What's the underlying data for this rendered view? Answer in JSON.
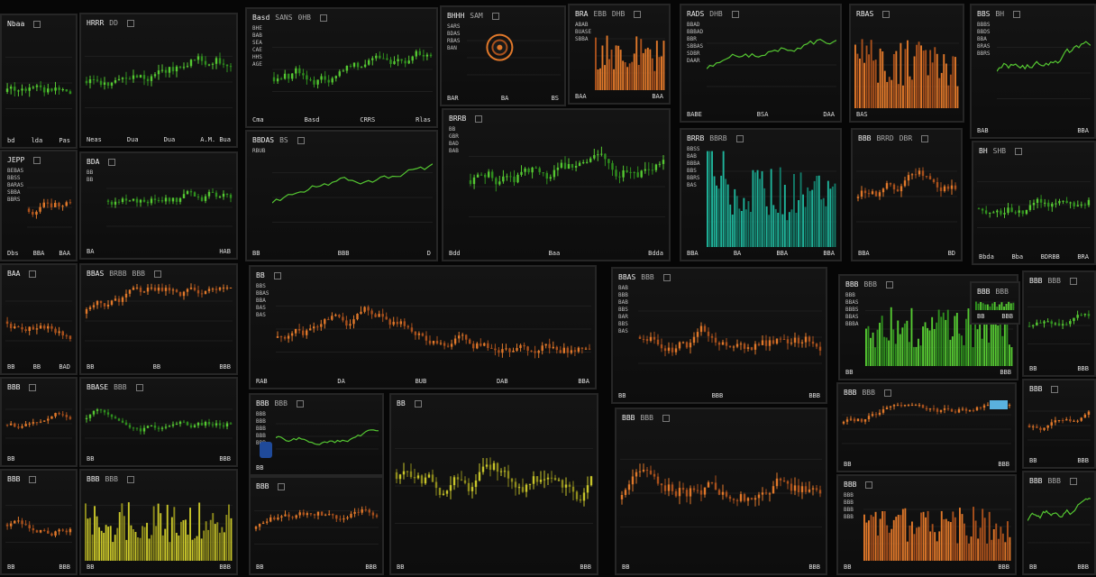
{
  "theme": {
    "accent_green": "#55c832",
    "accent_orange": "#e0782a",
    "accent_yellow": "#c8c52a",
    "accent_teal": "#1fb39a",
    "accent_blue": "#2c5d86"
  },
  "panels": [
    {
      "key": "p1",
      "chart_type": "candlestick",
      "color_scheme": "green",
      "header": [
        "Nbaa"
      ],
      "labels": [],
      "footer": [
        "bd",
        "lda",
        "Pas"
      ]
    },
    {
      "key": "p2",
      "chart_type": "candlestick",
      "color_scheme": "green",
      "header": [
        "HRRR",
        "DD"
      ],
      "labels": [],
      "footer": [
        "Neas",
        "Dua",
        "Dua",
        "A.M. Bua"
      ]
    },
    {
      "key": "p3",
      "chart_type": "candlestick",
      "color_scheme": "green",
      "header": [
        "Basd",
        "SANS",
        "0HB"
      ],
      "labels": [
        "BHE",
        "BAB",
        "SEA",
        "CAE",
        "HHS",
        "AGE"
      ],
      "footer": [
        "Cma",
        "Basd",
        "CRRS",
        "Rlas"
      ]
    },
    {
      "key": "p4",
      "chart_type": "orbit",
      "color_scheme": "orange",
      "header": [
        "BHHH",
        "SAM"
      ],
      "labels": [
        "SARS",
        "BDAS",
        "RBAS",
        "BAN"
      ],
      "footer": [
        "BAR",
        "BA",
        "BS"
      ]
    },
    {
      "key": "p5",
      "chart_type": "histogram",
      "color_scheme": "orange",
      "header": [
        "BRA",
        "EBB",
        "DHB"
      ],
      "labels": [
        "ABAB",
        "BUASE",
        "SBBA"
      ],
      "footer": [
        "BAA",
        "BAA"
      ]
    },
    {
      "key": "p6",
      "chart_type": "line",
      "color_scheme": "green",
      "header": [
        "RADS",
        "DHB"
      ],
      "labels": [
        "BBAD",
        "BBBAD",
        "BBR",
        "SBBAS",
        "SDBR",
        "DAAR"
      ],
      "footer": [
        "BABE",
        "BSA",
        "DAA"
      ]
    },
    {
      "key": "p7",
      "chart_type": "histogram",
      "color_scheme": "orange",
      "header": [
        "RBAS"
      ],
      "labels": [],
      "footer": [
        "BAS"
      ]
    },
    {
      "key": "p8",
      "chart_type": "candlestick",
      "color_scheme": "orange",
      "header": [
        "JEPP"
      ],
      "labels": [
        "BEBAS",
        "BBSS",
        "BARAS",
        "SBBA",
        "BBRS"
      ],
      "footer": [
        "Dbs",
        "BBA",
        "BAA"
      ]
    },
    {
      "key": "p9",
      "chart_type": "candlestick",
      "color_scheme": "green",
      "header": [
        "BDA"
      ],
      "labels": [
        "BB",
        "BB"
      ],
      "footer": [
        "BA",
        "HAB"
      ]
    },
    {
      "key": "p10",
      "chart_type": "line",
      "color_scheme": "green",
      "header": [
        "BBDAS",
        "BS"
      ],
      "labels": [
        "RBUB"
      ],
      "footer": [
        "BB",
        "BBB",
        "D"
      ]
    },
    {
      "key": "p11",
      "chart_type": "candlestick",
      "color_scheme": "green",
      "header": [
        "BRRB"
      ],
      "labels": [
        "BB",
        "GBR",
        "BAD",
        "BAB"
      ],
      "footer": [
        "Bdd",
        "Baa",
        "Bdda"
      ]
    },
    {
      "key": "p12",
      "chart_type": "candlestick",
      "color_scheme": "green",
      "header": [
        "BH",
        "SHB"
      ],
      "labels": [],
      "footer": [
        "Bbda",
        "Bba",
        "BDRBB",
        "BRA"
      ]
    },
    {
      "key": "p13",
      "chart_type": "histogram",
      "color_scheme": "teal",
      "header": [
        "BRRB",
        "BBRB"
      ],
      "labels": [
        "BBSS",
        "BAB",
        "BBBA",
        "BBS",
        "BBRS",
        "BAS"
      ],
      "footer": [
        "BBA",
        "BA",
        "BBA",
        "BBA"
      ]
    },
    {
      "key": "p14",
      "chart_type": "candlestick",
      "color_scheme": "orange",
      "header": [
        "BBB",
        "BRRD",
        "DBR"
      ],
      "labels": [],
      "footer": [
        "BBA",
        "BD"
      ]
    },
    {
      "key": "p15",
      "chart_type": "line",
      "color_scheme": "green",
      "header": [
        "BBS",
        "BH"
      ],
      "labels": [
        "BBBS",
        "BBDS",
        "BBA",
        "BRAS",
        "BBRS"
      ],
      "footer": [
        "BAB",
        "BBA"
      ]
    },
    {
      "key": "p16",
      "chart_type": "candlestick",
      "color_scheme": "orange",
      "header": [
        "BAA"
      ],
      "labels": [],
      "footer": [
        "BB",
        "BB",
        "BAD"
      ]
    },
    {
      "key": "p17",
      "chart_type": "candlestick",
      "color_scheme": "orange",
      "header": [
        "BBAS",
        "BRBB",
        "BBB"
      ],
      "labels": [],
      "footer": [
        "BB",
        "BB",
        "BBB"
      ]
    },
    {
      "key": "p18",
      "chart_type": "candlestick",
      "color_scheme": "orange",
      "header": [
        "BB"
      ],
      "labels": [
        "BBS",
        "BBAS",
        "BBA",
        "BAS",
        "BAS"
      ],
      "footer": [
        "RAB",
        "DA",
        "BUB",
        "DAB",
        "BBA"
      ]
    },
    {
      "key": "p19",
      "chart_type": "candlestick",
      "color_scheme": "orange",
      "header": [
        "BBAS",
        "BBB"
      ],
      "labels": [
        "BAB",
        "BBB",
        "BAB",
        "BBS",
        "BAR",
        "BBS",
        "BAS"
      ],
      "footer": [
        "BB",
        "BBB",
        "BBB"
      ]
    },
    {
      "key": "p20",
      "chart_type": "histogram",
      "color_scheme": "green",
      "header": [
        "BBB",
        "BBB"
      ],
      "labels": [
        "BBB",
        "BBAS",
        "BBBS",
        "BBAS",
        "BBBA"
      ],
      "footer": [
        "BB",
        "BBB"
      ]
    },
    {
      "key": "p21",
      "chart_type": "candlestick",
      "color_scheme": "yellow",
      "header": [
        "BBS"
      ],
      "labels": [],
      "footer": [
        "BB",
        "BBB"
      ]
    },
    {
      "key": "p22",
      "chart_type": "candlestick",
      "color_scheme": "orange",
      "header": [
        "BBB"
      ],
      "labels": [],
      "footer": [
        "BB"
      ]
    },
    {
      "key": "p23",
      "chart_type": "candlestick",
      "color_scheme": "green",
      "header": [
        "BBASE",
        "BBB"
      ],
      "labels": [],
      "footer": [
        "BB",
        "BBB"
      ]
    },
    {
      "key": "p24",
      "chart_type": "line",
      "color_scheme": "green",
      "header": [
        "BBB",
        "BBB"
      ],
      "labels": [
        "BBB",
        "BBB",
        "BBB",
        "BBB",
        "BBB"
      ],
      "footer": [
        "BB"
      ]
    },
    {
      "key": "p25",
      "chart_type": "candlestick",
      "color_scheme": "yellow",
      "header": [
        "BB"
      ],
      "labels": [],
      "footer": [
        "BB",
        "BBB"
      ]
    },
    {
      "key": "p26",
      "chart_type": "candlestick",
      "color_scheme": "orange",
      "header": [
        "BBB",
        "BBB"
      ],
      "labels": [],
      "footer": [
        "BB",
        "BBB"
      ]
    },
    {
      "key": "p27",
      "chart_type": "histogram",
      "color_scheme": "orange",
      "header": [
        "BBB"
      ],
      "labels": [
        "BBB",
        "BBB",
        "BBB",
        "BBB"
      ],
      "footer": [
        "BB",
        "BBB"
      ]
    },
    {
      "key": "p28",
      "chart_type": "candlestick",
      "color_scheme": "orange",
      "header": [
        "BBB"
      ],
      "labels": [],
      "footer": [
        "BB",
        "BBB"
      ]
    },
    {
      "key": "p29",
      "chart_type": "histogram",
      "color_scheme": "yellow",
      "header": [
        "BBB",
        "BBB"
      ],
      "labels": [],
      "footer": [
        "BB",
        "BBB"
      ]
    },
    {
      "key": "p30",
      "chart_type": "candlestick",
      "color_scheme": "orange",
      "header": [
        "BBB"
      ],
      "labels": [],
      "footer": [
        "BB",
        "BBB"
      ]
    },
    {
      "key": "p31",
      "chart_type": "candlestick",
      "color_scheme": "orange",
      "header": [
        "BBB",
        "BBB"
      ],
      "labels": [],
      "footer": [
        "BB",
        "BBB"
      ]
    },
    {
      "key": "p32",
      "chart_type": "candlestick",
      "color_scheme": "green",
      "header": [
        "BBB",
        "BBB"
      ],
      "labels": [],
      "footer": [
        "BB",
        "BBB"
      ]
    },
    {
      "key": "p33",
      "chart_type": "histogram",
      "color_scheme": "green",
      "header": [
        "BBB",
        "BBB"
      ],
      "labels": [],
      "footer": [
        "BB",
        "BBB"
      ]
    },
    {
      "key": "p34",
      "chart_type": "candlestick",
      "color_scheme": "orange",
      "header": [
        "BBB"
      ],
      "labels": [],
      "footer": [
        "BB",
        "BBB"
      ]
    },
    {
      "key": "p35",
      "chart_type": "line",
      "color_scheme": "green",
      "header": [
        "BBB",
        "BBB"
      ],
      "labels": [],
      "footer": [
        "BB",
        "BBB"
      ]
    }
  ]
}
